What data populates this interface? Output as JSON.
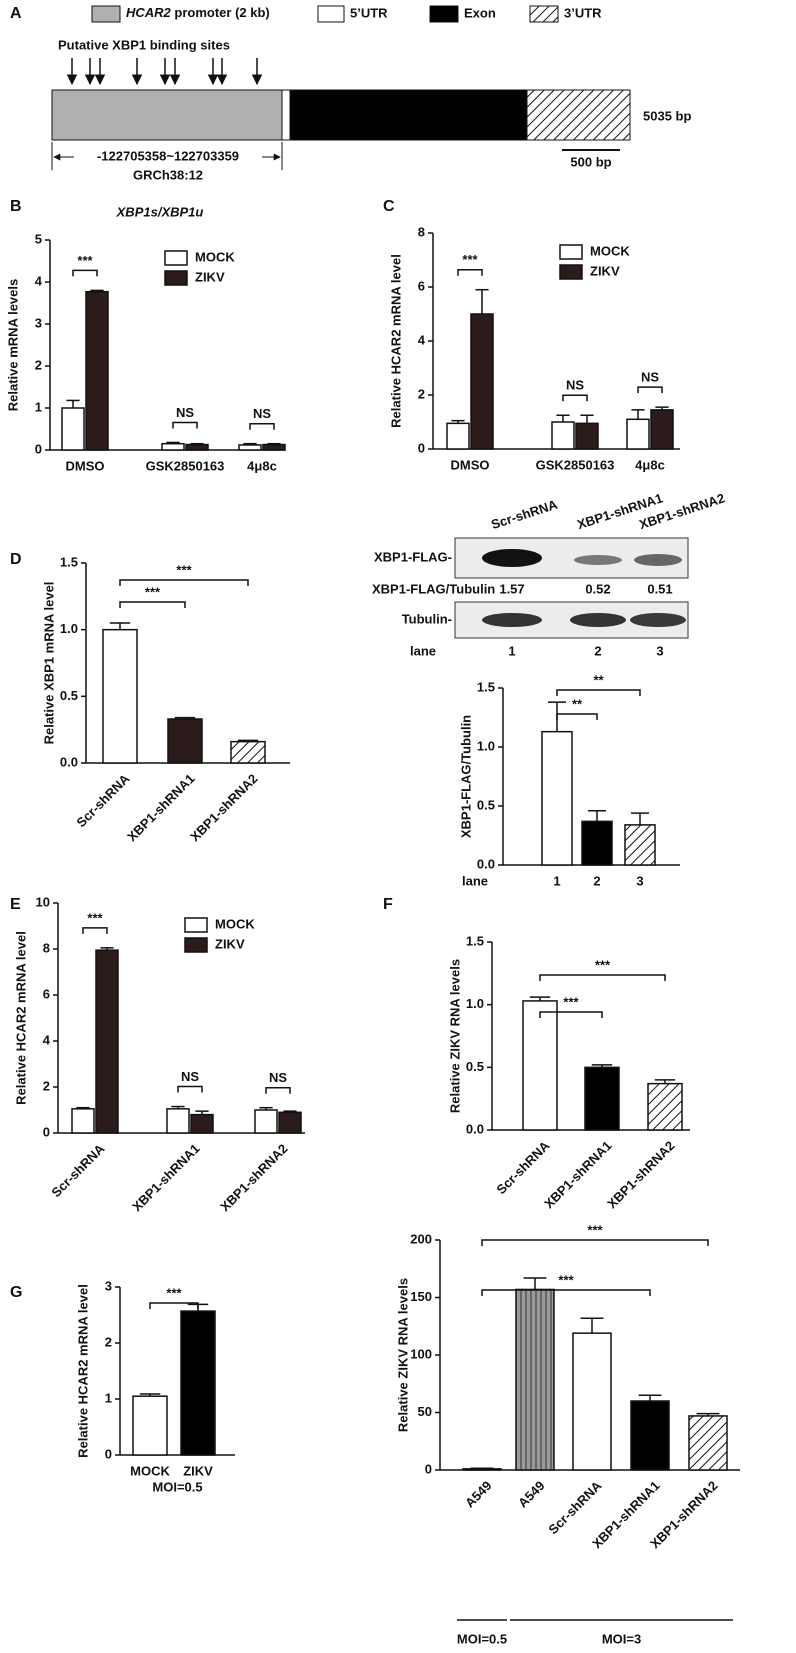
{
  "diagram": {
    "panel": "A",
    "legend": {
      "promoter_gene": "HCAR2",
      "promoter_rest": " promoter (2 kb)",
      "utr5": "5’UTR",
      "exon": "Exon",
      "utr3": "3’UTR"
    },
    "sites_label": "Putative XBP1 binding sites",
    "length_label": "5035 bp",
    "scale_label": "500 bp",
    "range_label": "-122705358~122703359",
    "assembly": "GRCh38:12"
  },
  "blot": {
    "columns": [
      "Scr-shRNA",
      "XBP1-shRNA1",
      "XBP1-shRNA2"
    ],
    "row1": "XBP1-FLAG-",
    "ratio_label": "XBP1-FLAG/Tubulin",
    "ratios": [
      1.57,
      0.52,
      0.51
    ],
    "row2": "Tubulin-",
    "lane_label": "lane",
    "lanes": [
      1,
      2,
      3
    ]
  },
  "chart_data": [
    {
      "type": "grouped_bar",
      "panel": "B",
      "title": "XBP1s/XBP1u",
      "ylabel": "Relative mRNA levels",
      "categories": [
        "DMSO",
        "GSK2850163",
        "4μ8c"
      ],
      "series": [
        {
          "name": "MOCK",
          "color": "#ffffff",
          "values": [
            1.0,
            0.15,
            0.12
          ],
          "errors": [
            0.18,
            0.03,
            0.03
          ]
        },
        {
          "name": "ZIKV",
          "color": "#2b1b1b",
          "values": [
            3.77,
            0.13,
            0.13
          ],
          "errors": [
            0.03,
            0.02,
            0.02
          ]
        }
      ],
      "ylim": [
        0,
        5
      ],
      "yticks": [
        0,
        1,
        2,
        3,
        4,
        5
      ],
      "annotations": [
        {
          "text": "***",
          "category": 0
        },
        {
          "text": "NS",
          "category": 1
        },
        {
          "text": "NS",
          "category": 2
        }
      ]
    },
    {
      "type": "grouped_bar",
      "panel": "C",
      "ylabel": "Relative HCAR2 mRNA level",
      "categories": [
        "DMSO",
        "GSK2850163",
        "4μ8c"
      ],
      "series": [
        {
          "name": "MOCK",
          "color": "#ffffff",
          "values": [
            0.95,
            1.0,
            1.1
          ],
          "errors": [
            0.1,
            0.25,
            0.35
          ]
        },
        {
          "name": "ZIKV",
          "color": "#2b1b1b",
          "values": [
            5.0,
            0.95,
            1.45
          ],
          "errors": [
            0.9,
            0.3,
            0.1
          ]
        }
      ],
      "ylim": [
        0,
        8
      ],
      "yticks": [
        0,
        2,
        4,
        6,
        8
      ],
      "annotations": [
        {
          "text": "***",
          "category": 0
        },
        {
          "text": "NS",
          "category": 1
        },
        {
          "text": "NS",
          "category": 2
        }
      ]
    },
    {
      "type": "bar",
      "panel": "D",
      "ylabel": "Relative XBP1 mRNA level",
      "categories": [
        "Scr-shRNA",
        "XBP1-shRNA1",
        "XBP1-shRNA2"
      ],
      "values": [
        1.0,
        0.33,
        0.16
      ],
      "errors": [
        0.05,
        0.01,
        0.01
      ],
      "colors": [
        "#ffffff",
        "#2b1b1b",
        "hatch"
      ],
      "ylim": [
        0,
        1.5
      ],
      "yticks": [
        {
          "value": 0,
          "label": "0.0"
        },
        0.5,
        {
          "value": 1,
          "label": "1.0"
        },
        1.5
      ],
      "annotations": [
        {
          "text": "***",
          "from": 0,
          "to": 1
        },
        {
          "text": "***",
          "from": 0,
          "to": 2
        }
      ]
    },
    {
      "type": "bar",
      "ylabel": "XBP1-FLAG/Tubulin",
      "xlabel": "lane",
      "categories": [
        "1",
        "2",
        "3"
      ],
      "values": [
        1.13,
        0.37,
        0.34
      ],
      "errors": [
        0.25,
        0.09,
        0.1
      ],
      "colors": [
        "#ffffff",
        "#000000",
        "hatch"
      ],
      "ylim": [
        0,
        1.5
      ],
      "yticks": [
        {
          "value": 0,
          "label": "0.0"
        },
        0.5,
        {
          "value": 1,
          "label": "1.0"
        },
        1.5
      ],
      "annotations": [
        {
          "text": "**",
          "from": 0,
          "to": 1
        },
        {
          "text": "**",
          "from": 0,
          "to": 2
        }
      ]
    },
    {
      "type": "grouped_bar",
      "panel": "E",
      "ylabel": "Relative HCAR2 mRNA level",
      "categories": [
        "Scr-shRNA",
        "XBP1-shRNA1",
        "XBP1-shRNA2"
      ],
      "series": [
        {
          "name": "MOCK",
          "color": "#ffffff",
          "values": [
            1.05,
            1.05,
            1.0
          ],
          "errors": [
            0.05,
            0.1,
            0.1
          ]
        },
        {
          "name": "ZIKV",
          "color": "#2b1b1b",
          "values": [
            7.95,
            0.8,
            0.9
          ],
          "errors": [
            0.1,
            0.15,
            0.05
          ]
        }
      ],
      "ylim": [
        0,
        10
      ],
      "yticks": [
        0,
        2,
        4,
        6,
        8,
        10
      ],
      "annotations": [
        {
          "text": "***",
          "category": 0
        },
        {
          "text": "NS",
          "category": 1
        },
        {
          "text": "NS",
          "category": 2
        }
      ]
    },
    {
      "type": "bar",
      "panel": "F",
      "ylabel": "Relative ZIKV RNA levels",
      "categories": [
        "Scr-shRNA",
        "XBP1-shRNA1",
        "XBP1-shRNA2"
      ],
      "values": [
        1.03,
        0.5,
        0.37
      ],
      "errors": [
        0.03,
        0.02,
        0.03
      ],
      "colors": [
        "#ffffff",
        "#000000",
        "hatch"
      ],
      "ylim": [
        0,
        1.5
      ],
      "yticks": [
        {
          "value": 0,
          "label": "0.0"
        },
        0.5,
        {
          "value": 1,
          "label": "1.0"
        },
        1.5
      ],
      "annotations": [
        {
          "text": "***",
          "from": 0,
          "to": 1
        },
        {
          "text": "***",
          "from": 0,
          "to": 2
        }
      ]
    },
    {
      "type": "bar",
      "panel": "G",
      "ylabel": "Relative HCAR2 mRNA level",
      "xlabel": "MOI=0.5",
      "categories": [
        "MOCK",
        "ZIKV"
      ],
      "values": [
        1.05,
        2.57
      ],
      "errors": [
        0.04,
        0.12
      ],
      "colors": [
        "#ffffff",
        "#000000"
      ],
      "ylim": [
        0,
        3
      ],
      "yticks": [
        0,
        1,
        2,
        3
      ],
      "annotations": [
        {
          "text": "***",
          "from": 0,
          "to": 1
        }
      ]
    },
    {
      "type": "bar",
      "ylabel": "Relative ZIKV RNA levels",
      "categories": [
        "A549",
        "A549",
        "Scr-shRNA",
        "XBP1-shRNA1",
        "XBP1-shRNA2"
      ],
      "values": [
        1,
        157,
        119,
        60,
        47
      ],
      "errors": [
        0.5,
        10,
        13,
        5,
        2
      ],
      "colors": [
        "#ffffff",
        "vstripe",
        "#ffffff",
        "#000000",
        "hatch"
      ],
      "ylim": [
        0,
        200
      ],
      "yticks": [
        0,
        50,
        100,
        150,
        200
      ],
      "groups": [
        {
          "label": "MOI=0.5",
          "from": 0,
          "to": 0
        },
        {
          "label": "MOI=3",
          "from": 1,
          "to": 4
        }
      ],
      "annotations": [
        {
          "text": "***",
          "from": 0,
          "to": 3
        },
        {
          "text": "***",
          "from": 0,
          "to": 4
        }
      ]
    }
  ]
}
